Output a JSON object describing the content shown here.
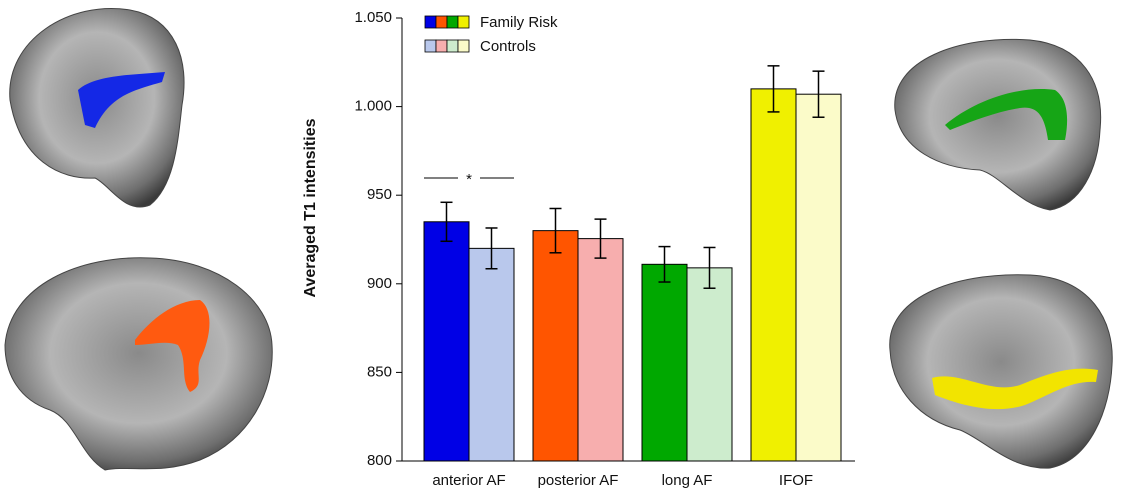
{
  "chart_data": {
    "type": "bar",
    "ylabel": "Averaged T1 intensities",
    "categories": [
      "anterior AF",
      "posterior AF",
      "long AF",
      "IFOF"
    ],
    "series": [
      {
        "name": "Family Risk",
        "color": [
          "#0000e6",
          "#ff5500",
          "#00a800",
          "#f0f000"
        ],
        "values": [
          935,
          930,
          911,
          1010
        ],
        "errors": [
          11,
          12.5,
          10,
          13
        ]
      },
      {
        "name": "Controls",
        "color": [
          "#b9c8ec",
          "#f7aeae",
          "#cdeccd",
          "#fbfbc9"
        ],
        "values": [
          920,
          925.5,
          909,
          1007
        ],
        "errors": [
          11.5,
          11,
          11.5,
          13
        ]
      }
    ],
    "ylim": [
      800,
      1050
    ],
    "yticks": [
      800,
      850,
      900,
      950,
      {
        "value": 1000,
        "label": "1.000"
      },
      {
        "value": 1050,
        "label": "1.050"
      }
    ],
    "significance_label": "*"
  }
}
